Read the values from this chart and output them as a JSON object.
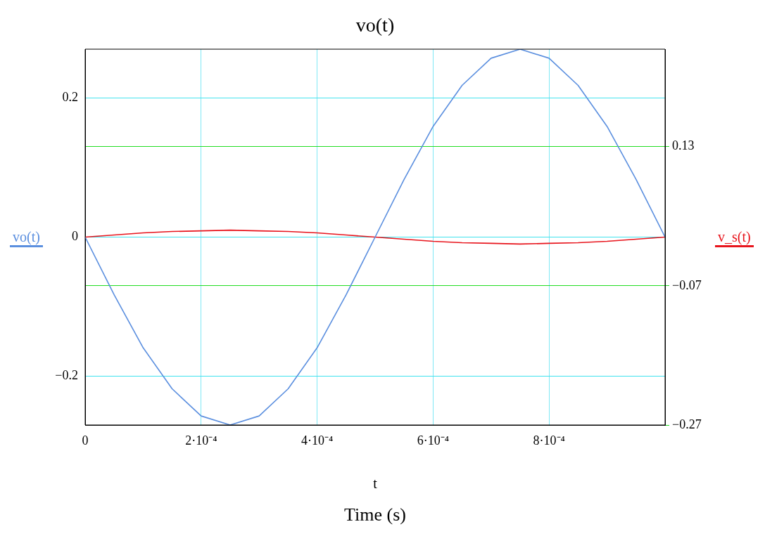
{
  "chart_data": {
    "type": "line",
    "title": "vo(t)",
    "xlabel": "t",
    "annotations": [
      "Time (s)"
    ],
    "xlim": [
      0,
      0.001
    ],
    "xticks": [
      0,
      {
        "value": 0.0002,
        "label": "2·10⁻⁴"
      },
      {
        "value": 0.0004,
        "label": "4·10⁻⁴"
      },
      {
        "value": 0.0006,
        "label": "6·10⁻⁴"
      },
      {
        "value": 0.0008,
        "label": "8·10⁻⁴"
      }
    ],
    "ylim": [
      -0.27,
      0.27
    ],
    "yticks": [
      {
        "value": -0.2,
        "label": "−0.2"
      },
      0,
      0.2
    ],
    "y2lim": [
      -0.27,
      0.27
    ],
    "y2ticks": [
      {
        "value": -0.27,
        "label": "−0.27"
      },
      {
        "value": -0.07,
        "label": "−0.07"
      },
      0.13
    ],
    "grid": true,
    "x": [
      0,
      5e-05,
      0.0001,
      0.00015,
      0.0002,
      0.00025,
      0.0003,
      0.00035,
      0.0004,
      0.00045,
      0.0005,
      0.00055,
      0.0006,
      0.00065,
      0.0007,
      0.00075,
      0.0008,
      0.00085,
      0.0009,
      0.00095,
      0.001
    ],
    "series": [
      {
        "name": "vo(t)",
        "color": "#5b8fdf",
        "values": [
          0,
          -0.083,
          -0.159,
          -0.218,
          -0.257,
          -0.27,
          -0.257,
          -0.218,
          -0.159,
          -0.083,
          0,
          0.083,
          0.159,
          0.218,
          0.257,
          0.27,
          0.257,
          0.218,
          0.159,
          0.083,
          0
        ]
      },
      {
        "name": "v_s(t)",
        "color": "#e8141c",
        "axis": "y2",
        "values": [
          0,
          0.003,
          0.006,
          0.008,
          0.009,
          0.01,
          0.009,
          0.008,
          0.006,
          0.003,
          0,
          -0.003,
          -0.006,
          -0.008,
          -0.009,
          -0.01,
          -0.009,
          -0.008,
          -0.006,
          -0.003,
          0
        ]
      }
    ]
  }
}
